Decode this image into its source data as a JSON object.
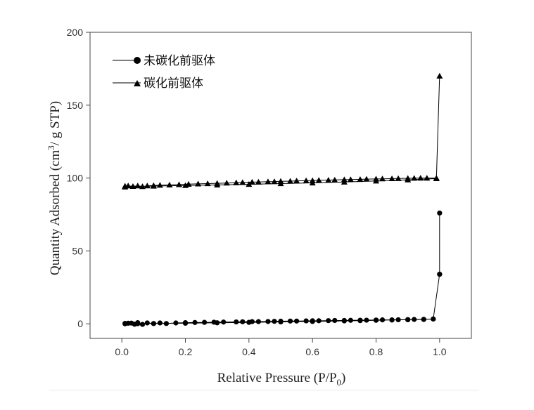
{
  "chart_data": {
    "type": "line",
    "title": "",
    "xlabel": "Relative Pressure (P/P0)",
    "xlabel_main": "Relative Pressure (P/P",
    "xlabel_sub": "0",
    "xlabel_end": ")",
    "ylabel": "Quantity Adsorbed (cm3/ g STP)",
    "ylabel_main": "Quantity Adsorbed (cm",
    "ylabel_sup": "3",
    "ylabel_end": "/ g STP)",
    "xlim": [
      -0.1,
      1.1
    ],
    "ylim": [
      -10,
      200
    ],
    "x_ticks": [
      0.0,
      0.2,
      0.4,
      0.6,
      0.8,
      1.0
    ],
    "x_tick_labels": [
      "0.0",
      "0.2",
      "0.4",
      "0.6",
      "0.8",
      "1.0"
    ],
    "y_ticks": [
      0,
      50,
      100,
      150,
      200
    ],
    "y_tick_labels": [
      "0",
      "50",
      "100",
      "150",
      "200"
    ],
    "grid": false,
    "legend_position": "top-left",
    "series": [
      {
        "name": "未碳化前驱体",
        "marker": "circle",
        "color": "#000000",
        "x": [
          0.01,
          0.02,
          0.03,
          0.04,
          0.05,
          0.065,
          0.08,
          0.1,
          0.12,
          0.14,
          0.17,
          0.2,
          0.23,
          0.26,
          0.29,
          0.32,
          0.36,
          0.38,
          0.41,
          0.43,
          0.46,
          0.48,
          0.5,
          0.53,
          0.55,
          0.58,
          0.6,
          0.62,
          0.65,
          0.67,
          0.7,
          0.72,
          0.75,
          0.77,
          0.8,
          0.82,
          0.85,
          0.87,
          0.9,
          0.92,
          0.95,
          0.98,
          1.0,
          1.0,
          1.0,
          0.98,
          0.95,
          0.9,
          0.85,
          0.8,
          0.75,
          0.7,
          0.6,
          0.5,
          0.4,
          0.3,
          0.2,
          0.1,
          0.05,
          0.01
        ],
        "y": [
          0.3,
          0.4,
          0.5,
          -0.3,
          0.8,
          -0.4,
          0.6,
          0.2,
          0.6,
          0.2,
          0.6,
          0.8,
          0.9,
          1.0,
          1.1,
          1.2,
          1.3,
          1.4,
          1.5,
          1.5,
          1.6,
          1.7,
          1.8,
          1.9,
          1.9,
          2.0,
          2.1,
          2.1,
          2.2,
          2.3,
          2.3,
          2.4,
          2.5,
          2.5,
          2.6,
          2.7,
          2.7,
          2.8,
          2.9,
          3.0,
          3.1,
          3.3,
          34.0,
          76.0,
          34.0,
          3.3,
          3.0,
          2.8,
          2.6,
          2.4,
          2.2,
          2.0,
          1.6,
          1.3,
          1.0,
          0.7,
          0.4,
          0.2,
          0.1,
          0.0
        ]
      },
      {
        "name": "碳化前驱体",
        "marker": "triangle",
        "color": "#000000",
        "x": [
          0.01,
          0.02,
          0.035,
          0.05,
          0.065,
          0.08,
          0.1,
          0.12,
          0.15,
          0.18,
          0.21,
          0.24,
          0.27,
          0.3,
          0.33,
          0.36,
          0.38,
          0.41,
          0.43,
          0.46,
          0.48,
          0.5,
          0.53,
          0.55,
          0.58,
          0.6,
          0.62,
          0.65,
          0.67,
          0.7,
          0.72,
          0.75,
          0.77,
          0.8,
          0.82,
          0.85,
          0.87,
          0.9,
          0.92,
          0.94,
          0.96,
          0.99,
          1.0,
          0.99,
          0.9,
          0.8,
          0.7,
          0.6,
          0.5,
          0.4,
          0.3,
          0.2,
          0.1,
          0.01
        ],
        "y": [
          94.5,
          94.7,
          94.3,
          94.7,
          94.2,
          94.7,
          94.9,
          95.1,
          95.3,
          95.5,
          95.8,
          96.0,
          96.2,
          96.4,
          96.6,
          96.8,
          97.0,
          97.2,
          97.3,
          97.5,
          97.6,
          97.8,
          97.9,
          98.1,
          98.2,
          98.3,
          98.5,
          98.6,
          98.7,
          98.9,
          99.0,
          99.1,
          99.3,
          99.4,
          99.5,
          99.6,
          99.7,
          99.8,
          99.9,
          100.0,
          100.0,
          100.0,
          170.0,
          99.6,
          98.8,
          98.0,
          97.3,
          96.7,
          96.2,
          95.7,
          95.3,
          94.9,
          94.5,
          93.9
        ]
      }
    ]
  }
}
